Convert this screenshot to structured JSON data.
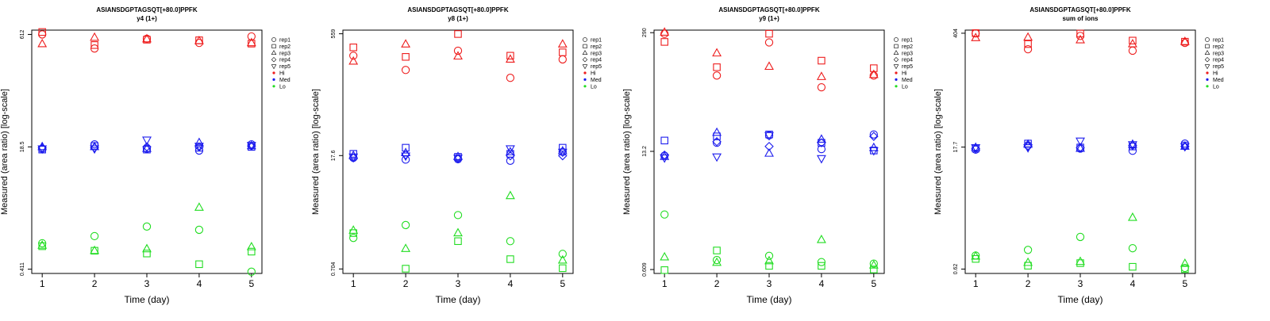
{
  "colors": {
    "Hi": "#ee1c1c",
    "Med": "#1c1cee",
    "Lo": "#22dd22",
    "axis": "#000000"
  },
  "legend": {
    "shapes": [
      {
        "label": "rep1",
        "icon": "circle-icon"
      },
      {
        "label": "rep2",
        "icon": "square-icon"
      },
      {
        "label": "rep3",
        "icon": "triangle-up-icon"
      },
      {
        "label": "rep4",
        "icon": "diamond-icon"
      },
      {
        "label": "rep5",
        "icon": "triangle-down-icon"
      }
    ],
    "groups": [
      {
        "label": "Hi",
        "color": "#ee1c1c"
      },
      {
        "label": "Med",
        "color": "#1c1cee"
      },
      {
        "label": "Lo",
        "color": "#22dd22"
      }
    ],
    "placement": "right"
  },
  "chart_data": [
    {
      "type": "scatter",
      "title": "ASIANSDGPTAGSQT[+80.0]PPFK",
      "subtitle": "y4 (1+)",
      "xlabel": "Time (day)",
      "ylabel": "Measured (area ratio) [log-scale]",
      "log_y": true,
      "xlim": [
        0.8,
        5.2
      ],
      "ylim": [
        0.36,
        700
      ],
      "x_ticks": [
        "1",
        "2",
        "3",
        "4",
        "5"
      ],
      "y_ticks": [
        {
          "value": 612,
          "label": "612"
        },
        {
          "value": 18.5,
          "label": "18.5"
        },
        {
          "value": 0.411,
          "label": "0.411"
        }
      ],
      "series": [
        {
          "name": "Hi",
          "shape": "circle",
          "x": [
            1,
            2,
            3,
            4,
            5
          ],
          "y": [
            612,
            395,
            535,
            470,
            575
          ]
        },
        {
          "name": "Hi",
          "shape": "square",
          "x": [
            1,
            2,
            3,
            4,
            5
          ],
          "y": [
            660,
            440,
            520,
            510,
            460
          ]
        },
        {
          "name": "Hi",
          "shape": "triangle-up",
          "x": [
            1,
            2,
            3,
            4,
            5
          ],
          "y": [
            455,
            555,
            530,
            500,
            470
          ]
        },
        {
          "name": "Med",
          "shape": "circle",
          "x": [
            1,
            2,
            3,
            4,
            5
          ],
          "y": [
            17.5,
            20.0,
            17.5,
            16.5,
            20.0
          ]
        },
        {
          "name": "Med",
          "shape": "square",
          "x": [
            1,
            2,
            3,
            4,
            5
          ],
          "y": [
            17.0,
            19.0,
            17.0,
            18.0,
            18.5
          ]
        },
        {
          "name": "Med",
          "shape": "triangle-up",
          "x": [
            1,
            2,
            3,
            4,
            5
          ],
          "y": [
            18.5,
            18.5,
            17.5,
            21.0,
            19.0
          ]
        },
        {
          "name": "Med",
          "shape": "diamond",
          "x": [
            1,
            2,
            3,
            4,
            5
          ],
          "y": [
            18.0,
            18.0,
            18.5,
            18.5,
            19.0
          ]
        },
        {
          "name": "Med",
          "shape": "triangle-down",
          "x": [
            1,
            2,
            3,
            4,
            5
          ],
          "y": [
            17.5,
            17.5,
            23.0,
            19.0,
            19.5
          ]
        },
        {
          "name": "Lo",
          "shape": "circle",
          "x": [
            1,
            2,
            3,
            4,
            5
          ],
          "y": [
            0.92,
            1.15,
            1.55,
            1.4,
            0.38
          ]
        },
        {
          "name": "Lo",
          "shape": "square",
          "x": [
            1,
            2,
            3,
            4,
            5
          ],
          "y": [
            0.84,
            0.73,
            0.67,
            0.48,
            0.71
          ]
        },
        {
          "name": "Lo",
          "shape": "triangle-up",
          "x": [
            1,
            2,
            3,
            4,
            5
          ],
          "y": [
            0.86,
            0.73,
            0.77,
            2.8,
            0.82
          ]
        }
      ]
    },
    {
      "type": "scatter",
      "title": "ASIANSDGPTAGSQT[+80.0]PPFK",
      "subtitle": "y8 (1+)",
      "xlabel": "Time (day)",
      "ylabel": "Measured (area ratio) [log-scale]",
      "log_y": true,
      "xlim": [
        0.8,
        5.2
      ],
      "ylim": [
        0.62,
        620
      ],
      "x_ticks": [
        "1",
        "2",
        "3",
        "4",
        "5"
      ],
      "y_ticks": [
        {
          "value": 559,
          "label": "559"
        },
        {
          "value": 17.6,
          "label": "17.6"
        },
        {
          "value": 0.704,
          "label": "0.704"
        }
      ],
      "series": [
        {
          "name": "Hi",
          "shape": "circle",
          "x": [
            1,
            2,
            3,
            4,
            5
          ],
          "y": [
            300,
            200,
            345,
            160,
            270
          ]
        },
        {
          "name": "Hi",
          "shape": "square",
          "x": [
            1,
            2,
            3,
            4,
            5
          ],
          "y": [
            380,
            290,
            555,
            300,
            330
          ]
        },
        {
          "name": "Hi",
          "shape": "triangle-up",
          "x": [
            1,
            2,
            3,
            4,
            5
          ],
          "y": [
            255,
            415,
            295,
            270,
            415
          ]
        },
        {
          "name": "Med",
          "shape": "circle",
          "x": [
            1,
            2,
            3,
            4,
            5
          ],
          "y": [
            16.5,
            15.7,
            15.9,
            15.2,
            19.5
          ]
        },
        {
          "name": "Med",
          "shape": "square",
          "x": [
            1,
            2,
            3,
            4,
            5
          ],
          "y": [
            18.5,
            22.0,
            17.0,
            18.5,
            22.0
          ]
        },
        {
          "name": "Med",
          "shape": "triangle-up",
          "x": [
            1,
            2,
            3,
            4,
            5
          ],
          "y": [
            17.5,
            19.0,
            17.0,
            19.5,
            20.0
          ]
        },
        {
          "name": "Med",
          "shape": "diamond",
          "x": [
            1,
            2,
            3,
            4,
            5
          ],
          "y": [
            16.5,
            18.0,
            16.0,
            17.5,
            17.5
          ]
        },
        {
          "name": "Med",
          "shape": "triangle-down",
          "x": [
            1,
            2,
            3,
            4,
            5
          ],
          "y": [
            17.0,
            17.5,
            16.5,
            21.5,
            19.5
          ]
        },
        {
          "name": "Lo",
          "shape": "circle",
          "x": [
            1,
            2,
            3,
            4,
            5
          ],
          "y": [
            1.7,
            2.45,
            3.25,
            1.55,
            1.08
          ]
        },
        {
          "name": "Lo",
          "shape": "square",
          "x": [
            1,
            2,
            3,
            4,
            5
          ],
          "y": [
            1.95,
            0.71,
            1.55,
            0.93,
            0.72
          ]
        },
        {
          "name": "Lo",
          "shape": "triangle-up",
          "x": [
            1,
            2,
            3,
            4,
            5
          ],
          "y": [
            2.1,
            1.25,
            1.95,
            5.6,
            0.9
          ]
        }
      ]
    },
    {
      "type": "scatter",
      "title": "ASIANSDGPTAGSQT[+80.0]PPFK",
      "subtitle": "y9 (1+)",
      "xlabel": "Time (day)",
      "ylabel": "Measured (area ratio) [log-scale]",
      "log_y": true,
      "xlim": [
        0.8,
        5.2
      ],
      "ylim": [
        0.55,
        310
      ],
      "x_ticks": [
        "1",
        "2",
        "3",
        "4",
        "5"
      ],
      "y_ticks": [
        {
          "value": 290,
          "label": "290"
        },
        {
          "value": 13.2,
          "label": "13.2"
        },
        {
          "value": 0.609,
          "label": "0.609"
        }
      ],
      "series": [
        {
          "name": "Hi",
          "shape": "circle",
          "x": [
            1,
            2,
            3,
            4,
            5
          ],
          "y": [
            282,
            95,
            225,
            70,
            95
          ]
        },
        {
          "name": "Hi",
          "shape": "square",
          "x": [
            1,
            2,
            3,
            4,
            5
          ],
          "y": [
            228,
            118,
            282,
            140,
            115
          ]
        },
        {
          "name": "Hi",
          "shape": "triangle-up",
          "x": [
            1,
            2,
            3,
            4,
            5
          ],
          "y": [
            292,
            170,
            120,
            92,
            97
          ]
        },
        {
          "name": "Med",
          "shape": "circle",
          "x": [
            1,
            2,
            3,
            4,
            5
          ],
          "y": [
            11.8,
            16.5,
            20.0,
            14.0,
            20.5
          ]
        },
        {
          "name": "Med",
          "shape": "square",
          "x": [
            1,
            2,
            3,
            4,
            5
          ],
          "y": [
            17.5,
            19.5,
            20.5,
            16.5,
            13.5
          ]
        },
        {
          "name": "Med",
          "shape": "triangle-up",
          "x": [
            1,
            2,
            3,
            4,
            5
          ],
          "y": [
            11.5,
            21.5,
            12.5,
            18.0,
            14.5
          ]
        },
        {
          "name": "Med",
          "shape": "diamond",
          "x": [
            1,
            2,
            3,
            4,
            5
          ],
          "y": [
            12.0,
            17.0,
            15.0,
            16.5,
            19.5
          ]
        },
        {
          "name": "Med",
          "shape": "triangle-down",
          "x": [
            1,
            2,
            3,
            4,
            5
          ],
          "y": [
            11.2,
            11.5,
            20.0,
            11.0,
            13.5
          ]
        },
        {
          "name": "Lo",
          "shape": "circle",
          "x": [
            1,
            2,
            3,
            4,
            5
          ],
          "y": [
            2.55,
            0.78,
            0.87,
            0.74,
            0.71
          ]
        },
        {
          "name": "Lo",
          "shape": "square",
          "x": [
            1,
            2,
            3,
            4,
            5
          ],
          "y": [
            0.6,
            1.0,
            0.67,
            0.67,
            0.61
          ]
        },
        {
          "name": "Lo",
          "shape": "triangle-up",
          "x": [
            1,
            2,
            3,
            4,
            5
          ],
          "y": [
            0.84,
            0.73,
            0.76,
            1.32,
            0.68
          ]
        }
      ]
    },
    {
      "type": "scatter",
      "title": "ASIANSDGPTAGSQT[+80.0]PPFK",
      "subtitle": "sum of ions",
      "xlabel": "Time (day)",
      "ylabel": "Measured (area ratio) [log-scale]",
      "log_y": true,
      "xlim": [
        0.8,
        5.2
      ],
      "ylim": [
        0.55,
        440
      ],
      "x_ticks": [
        "1",
        "2",
        "3",
        "4",
        "5"
      ],
      "y_ticks": [
        {
          "value": 404,
          "label": "404"
        },
        {
          "value": 17.7,
          "label": "17.7"
        },
        {
          "value": 0.62,
          "label": "0.62"
        }
      ],
      "series": [
        {
          "name": "Hi",
          "shape": "circle",
          "x": [
            1,
            2,
            3,
            4,
            5
          ],
          "y": [
            402,
            260,
            375,
            250,
            310
          ]
        },
        {
          "name": "Hi",
          "shape": "square",
          "x": [
            1,
            2,
            3,
            4,
            5
          ],
          "y": [
            405,
            300,
            400,
            330,
            320
          ]
        },
        {
          "name": "Hi",
          "shape": "triangle-up",
          "x": [
            1,
            2,
            3,
            4,
            5
          ],
          "y": [
            355,
            360,
            335,
            300,
            320
          ]
        },
        {
          "name": "Med",
          "shape": "circle",
          "x": [
            1,
            2,
            3,
            4,
            5
          ],
          "y": [
            16.5,
            18.5,
            17.0,
            16.0,
            19.5
          ]
        },
        {
          "name": "Med",
          "shape": "square",
          "x": [
            1,
            2,
            3,
            4,
            5
          ],
          "y": [
            17.0,
            19.5,
            17.5,
            18.0,
            18.5
          ]
        },
        {
          "name": "Med",
          "shape": "triangle-up",
          "x": [
            1,
            2,
            3,
            4,
            5
          ],
          "y": [
            17.5,
            19.0,
            17.0,
            19.0,
            18.0
          ]
        },
        {
          "name": "Med",
          "shape": "diamond",
          "x": [
            1,
            2,
            3,
            4,
            5
          ],
          "y": [
            17.0,
            18.0,
            17.5,
            18.5,
            18.0
          ]
        },
        {
          "name": "Med",
          "shape": "triangle-down",
          "x": [
            1,
            2,
            3,
            4,
            5
          ],
          "y": [
            17.5,
            17.5,
            21.0,
            19.0,
            18.0
          ]
        },
        {
          "name": "Lo",
          "shape": "circle",
          "x": [
            1,
            2,
            3,
            4,
            5
          ],
          "y": [
            0.9,
            1.05,
            1.5,
            1.1,
            0.64
          ]
        },
        {
          "name": "Lo",
          "shape": "square",
          "x": [
            1,
            2,
            3,
            4,
            5
          ],
          "y": [
            0.82,
            0.68,
            0.73,
            0.66,
            0.62
          ]
        },
        {
          "name": "Lo",
          "shape": "triangle-up",
          "x": [
            1,
            2,
            3,
            4,
            5
          ],
          "y": [
            0.88,
            0.74,
            0.76,
            2.55,
            0.72
          ]
        }
      ]
    }
  ]
}
